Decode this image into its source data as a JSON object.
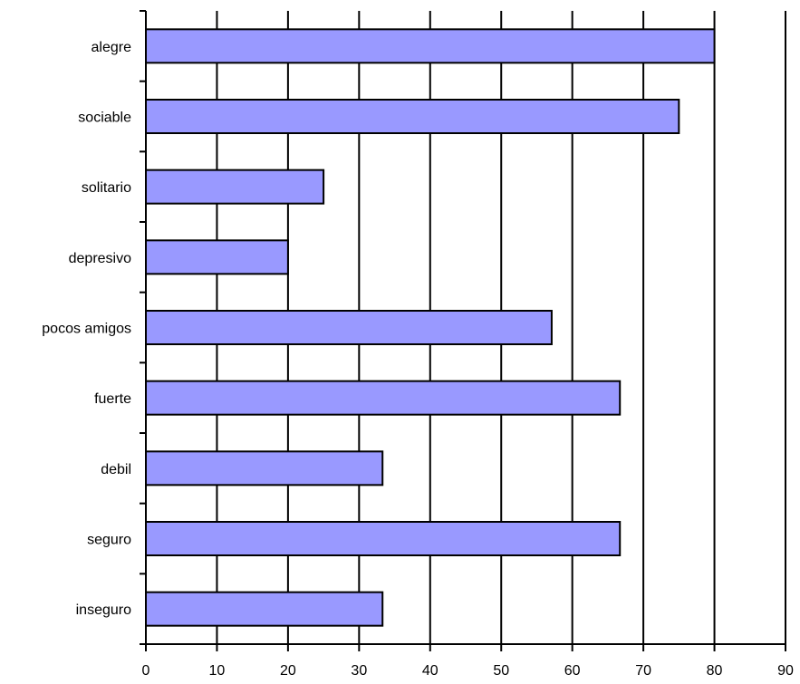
{
  "chart_data": {
    "type": "bar",
    "orientation": "horizontal",
    "categories": [
      "alegre",
      "sociable",
      "solitario",
      "depresivo",
      "pocos amigos",
      "fuerte",
      "debil",
      "seguro",
      "inseguro"
    ],
    "values": [
      80,
      75,
      25,
      20,
      57.1,
      66.7,
      33.3,
      66.7,
      33.3
    ],
    "xlim": [
      0,
      90
    ],
    "x_ticks": [
      "0",
      "10",
      "20",
      "30",
      "40",
      "50",
      "60",
      "70",
      "80",
      "90"
    ],
    "grid": "vertical",
    "legend": "none",
    "title": "",
    "xlabel": "",
    "ylabel": "",
    "colors": {
      "bar_fill": "#9999ff",
      "bar_stroke": "#000000",
      "grid": "#000000",
      "background": "#ffffff"
    }
  }
}
